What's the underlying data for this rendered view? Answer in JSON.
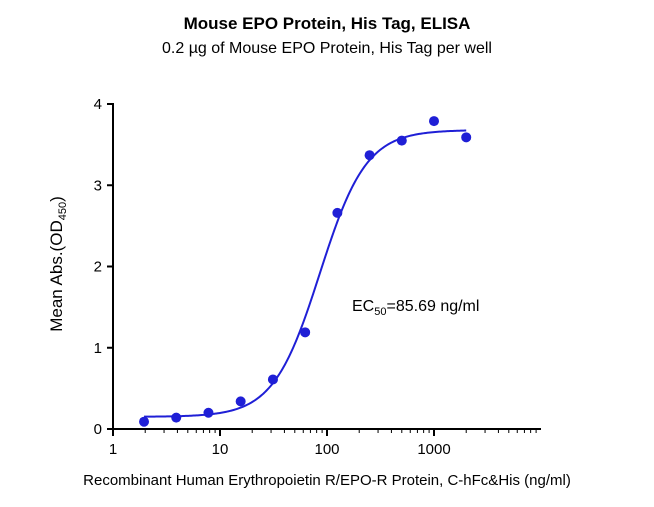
{
  "chart_data": {
    "type": "scatter",
    "title": "Mouse EPO Protein, His Tag, ELISA",
    "subtitle": "0.2 µg of Mouse EPO Protein, His Tag per well",
    "xlabel": "Recombinant Human Erythropoietin R/EPO-R Protein, C-hFc&His (ng/ml)",
    "ylabel_main": "Mean Abs.(OD",
    "ylabel_sub": "450",
    "ylabel_end": ")",
    "x_scale": "log",
    "xlim": [
      1,
      10000
    ],
    "ylim": [
      0,
      4
    ],
    "x_ticks": [
      1,
      10,
      100,
      1000
    ],
    "x_tick_labels": [
      "1",
      "10",
      "100",
      "1000"
    ],
    "y_ticks": [
      0,
      1,
      2,
      3,
      4
    ],
    "y_tick_labels": [
      "0",
      "1",
      "2",
      "3",
      "4"
    ],
    "grid": false,
    "series": [
      {
        "x": [
          1.95,
          3.9,
          7.8,
          15.6,
          31.25,
          62.5,
          125,
          250,
          500,
          1000,
          2000
        ],
        "y": [
          0.09,
          0.14,
          0.2,
          0.34,
          0.61,
          1.19,
          2.66,
          3.37,
          3.55,
          3.79,
          3.59
        ],
        "color": "#1f1fd6",
        "fit": {
          "model": "4PL",
          "bottom": 0.15,
          "top": 3.68,
          "ec50": 85.69,
          "hill": 2.0
        }
      }
    ],
    "annotation": {
      "prefix": "EC",
      "sub": "50",
      "text": "=85.69 ng/ml"
    }
  }
}
